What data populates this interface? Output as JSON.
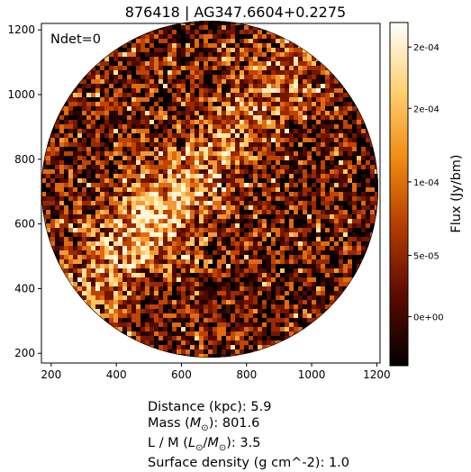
{
  "title": "876418 | AG347.6604+0.2275",
  "annotation": "Ndet=0",
  "colorbar": {
    "label": "Flux (Jy/bm)",
    "ticks": [
      {
        "label": "2e-04",
        "value": 0.00022
      },
      {
        "label": "2e-04",
        "value": 0.00017
      },
      {
        "label": "1e-04",
        "value": 0.00011
      },
      {
        "label": "5e-05",
        "value": 5e-05
      },
      {
        "label": "0e+00",
        "value": 0
      }
    ],
    "range": [
      -4e-05,
      0.00024
    ],
    "colormap": "afmhot",
    "colors": [
      "#000000",
      "#5a0a00",
      "#b23a00",
      "#f08a10",
      "#ffd070",
      "#ffffff"
    ]
  },
  "chart_data": {
    "type": "heatmap",
    "title": "876418 | AG347.6604+0.2275",
    "xlabel": "",
    "ylabel": "",
    "xlim": [
      170,
      1210
    ],
    "ylim": [
      170,
      1220
    ],
    "x_ticks": [
      200,
      400,
      600,
      800,
      1000,
      1200
    ],
    "y_ticks": [
      200,
      400,
      600,
      800,
      1000,
      1200
    ],
    "circular_mask": true,
    "brightest_region": "center-left, diagonal band from upper-center to lower-left"
  },
  "info": {
    "distance": "Distance (kpc): 5.9",
    "mass_pre": "Mass (",
    "mass_unit": "M",
    "mass_sub": "⊙",
    "mass_post": "): 801.6",
    "lm_pre": "L / M (",
    "lm_l": "L",
    "lm_sub1": "⊙",
    "lm_slash": "/",
    "lm_m": "M",
    "lm_sub2": "⊙",
    "lm_post": "): 3.5",
    "surface_density": "Surface density (g cm^-2): 1.0"
  }
}
